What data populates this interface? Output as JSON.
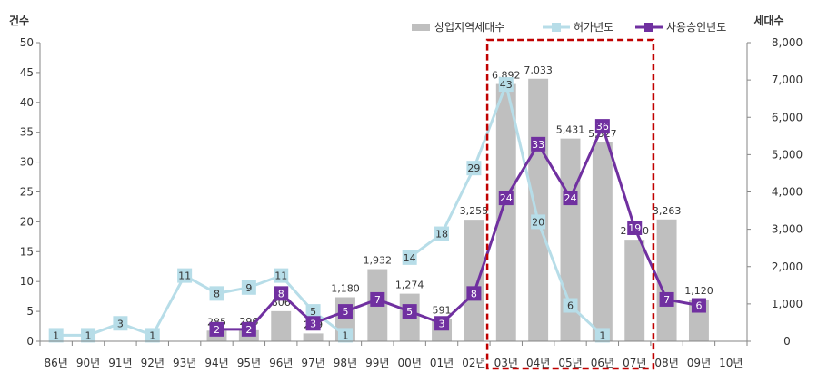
{
  "chart_data": {
    "type": "bar",
    "categories": [
      "86년",
      "90년",
      "91년",
      "92년",
      "93년",
      "94년",
      "95년",
      "96년",
      "97년",
      "98년",
      "99년",
      "00년",
      "01년",
      "02년",
      "03년",
      "04년",
      "05년",
      "06년",
      "07년",
      "08년",
      "09년",
      "10년"
    ],
    "left_axis": {
      "label": "건수",
      "range": [
        0,
        50
      ],
      "ticks": [
        0,
        5,
        10,
        15,
        20,
        25,
        30,
        35,
        40,
        45,
        50
      ]
    },
    "right_axis": {
      "label": "세대수",
      "range": [
        0,
        8000
      ],
      "ticks": [
        "0",
        "1,000",
        "2,000",
        "3,000",
        "4,000",
        "5,000",
        "6,000",
        "7,000",
        "8,000"
      ]
    },
    "bar_series": {
      "name": "상업지역세대수",
      "color": "#bfbfbf",
      "values": [
        null,
        null,
        null,
        null,
        null,
        285,
        296,
        806,
        209,
        1180,
        1932,
        1274,
        591,
        3255,
        6892,
        7033,
        5431,
        5327,
        2720,
        3263,
        1120,
        null
      ],
      "labels": [
        "",
        "",
        "",
        "",
        "",
        "285",
        "296",
        "806",
        "209",
        "1,180",
        "1,932",
        "1,274",
        "591",
        "3,255",
        "6,892",
        "7,033",
        "5,431",
        "5,327",
        "2,720",
        "3,263",
        "1,120",
        ""
      ]
    },
    "line_series": [
      {
        "name": "허가년도",
        "color": "#b7dde8",
        "values": [
          1,
          1,
          3,
          1,
          11,
          8,
          9,
          11,
          5,
          1,
          null,
          14,
          18,
          29,
          43,
          20,
          6,
          1,
          null,
          null,
          null,
          null
        ]
      },
      {
        "name": "사용승인년도",
        "color": "#7030a0",
        "values": [
          null,
          null,
          null,
          null,
          null,
          2,
          2,
          8,
          3,
          5,
          7,
          5,
          3,
          8,
          24,
          33,
          24,
          36,
          19,
          7,
          6,
          null
        ]
      }
    ],
    "legend_position": "top-right",
    "grid": false
  },
  "colors": {
    "highlight": "#c00000",
    "axis": "#868686"
  }
}
